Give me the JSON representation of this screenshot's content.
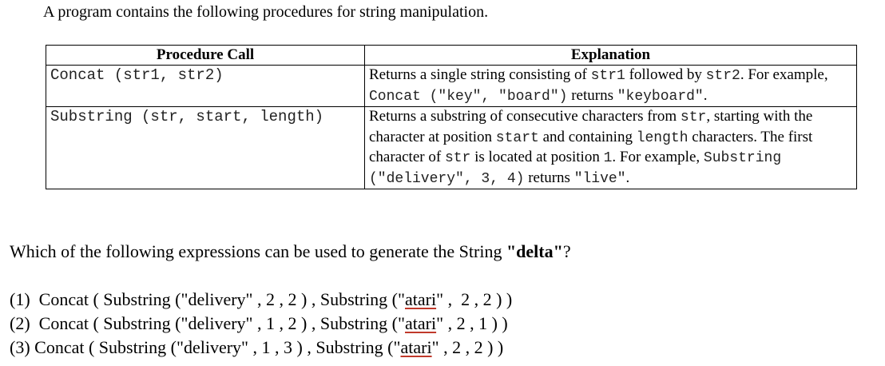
{
  "intro": "A program contains the following procedures for string manipulation.",
  "table": {
    "headers": [
      "Procedure Call",
      "Explanation"
    ],
    "rows": [
      {
        "call": "Concat (str1, str2)",
        "explanation": [
          {
            "t": "Returns a single string consisting of "
          },
          {
            "t": "str1",
            "mono": true
          },
          {
            "t": " followed by "
          },
          {
            "t": "str2",
            "mono": true
          },
          {
            "t": ". For example, "
          },
          {
            "t": "Concat (\"key\", \"board\")",
            "mono": true
          },
          {
            "t": " returns "
          },
          {
            "t": "\"keyboard\"",
            "mono": true
          },
          {
            "t": "."
          }
        ]
      },
      {
        "call": "Substring (str, start, length)",
        "explanation": [
          {
            "t": "Returns a substring of consecutive characters from "
          },
          {
            "t": "str",
            "mono": true
          },
          {
            "t": ", starting with the character at position "
          },
          {
            "t": "start",
            "mono": true
          },
          {
            "t": " and containing "
          },
          {
            "t": "length",
            "mono": true
          },
          {
            "t": " characters. The first character of "
          },
          {
            "t": "str",
            "mono": true
          },
          {
            "t": " is located at position "
          },
          {
            "t": "1",
            "mono": true
          },
          {
            "t": ". For example, "
          },
          {
            "t": "Substring (\"delivery\", 3, 4)",
            "mono": true
          },
          {
            "t": " returns "
          },
          {
            "t": "\"live\"",
            "mono": true
          },
          {
            "t": "."
          }
        ]
      }
    ]
  },
  "question": {
    "prefix": "Which of the following expressions can be used to generate the String ",
    "target": "\"delta\"",
    "suffix": "?"
  },
  "options": [
    {
      "label": "(1)  ",
      "pre": "Concat ( Substring (\"delivery\" , 2 , 2 ) , Substring (\"",
      "word": "atari",
      "post": "\" ,  2 , 2 ) )"
    },
    {
      "label": "(2)  ",
      "pre": "Concat ( Substring (\"delivery\" , 1 , 2 ) , Substring (\"",
      "word": "atari",
      "post": "\" , 2 , 1 ) )"
    },
    {
      "label": "(3) ",
      "pre": "Concat ( Substring (\"delivery\" , 1 , 3 ) , Substring (\"",
      "word": "atari",
      "post": "\" , 2 , 2 ) )"
    }
  ]
}
